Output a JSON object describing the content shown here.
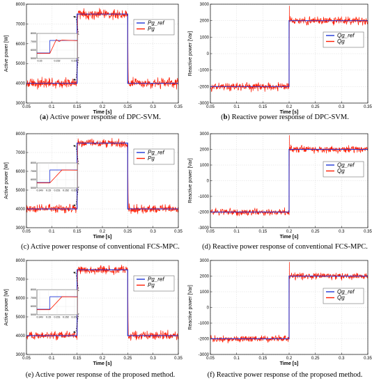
{
  "chart_data": [
    {
      "type": "line",
      "kind": "active",
      "label": "a",
      "caption_rest": " Active power response of DPC-SVM.",
      "xlabel": "Time [s]",
      "ylabel": "Active power [W]",
      "xlim": [
        0.05,
        0.35
      ],
      "ylim": [
        3000,
        8000
      ],
      "xticks": [
        "0.05",
        "0.1",
        "0.15",
        "0.2",
        "0.25",
        "0.3",
        "0.35"
      ],
      "yticks": [
        "3000",
        "4000",
        "5000",
        "6000",
        "7000",
        "8000"
      ],
      "series": [
        {
          "name": "Pg_ref",
          "color": "#1f35d6",
          "x": [
            0.05,
            0.15,
            0.15,
            0.25,
            0.25,
            0.35
          ],
          "values": [
            4000,
            4000,
            7500,
            7500,
            4000,
            4000
          ]
        },
        {
          "name": "Pg",
          "color": "#ff1a00",
          "x": [
            0.05,
            0.15,
            0.151,
            0.25,
            0.251,
            0.35
          ],
          "values": [
            4000,
            4000,
            7500,
            7500,
            4000,
            4000
          ],
          "noise": 130
        }
      ],
      "legend": {
        "position": "top-right"
      },
      "inset": {
        "xticks": [
          "0.15",
          "0.152",
          "0.154"
        ],
        "yticks": [
          "5000",
          "6000",
          "7000",
          "8000"
        ]
      }
    },
    {
      "type": "line",
      "kind": "reactive",
      "label": "b",
      "caption_rest": " Reactive power response of DPC-SVM.",
      "xlabel": "Time [s]",
      "ylabel": "Reactive power [Var]",
      "xlim": [
        0.05,
        0.35
      ],
      "ylim": [
        -3000,
        3000
      ],
      "xticks": [
        "0.05",
        "0.1",
        "0.15",
        "0.2",
        "0.25",
        "0.3",
        "0.35"
      ],
      "yticks": [
        "-3000",
        "-2000",
        "-1000",
        "0",
        "1000",
        "2000",
        "3000"
      ],
      "series": [
        {
          "name": "Qg_ref",
          "color": "#1f35d6",
          "x": [
            0.05,
            0.2,
            0.2,
            0.35
          ],
          "values": [
            -2000,
            -2000,
            2000,
            2000
          ]
        },
        {
          "name": "Qg",
          "color": "#ff1a00",
          "x": [
            0.05,
            0.2,
            0.2005,
            0.35
          ],
          "values": [
            -2000,
            -2000,
            2000,
            2000
          ],
          "noise": 120
        }
      ],
      "legend": {
        "position": "top-right"
      }
    },
    {
      "type": "line",
      "kind": "active",
      "label": "",
      "caption_rest": "(c) Active power response of conventional FCS-MPC.",
      "xlabel": "Time [s]",
      "ylabel": "Active power [W]",
      "xlim": [
        0.05,
        0.35
      ],
      "ylim": [
        3000,
        8000
      ],
      "xticks": [
        "0.05",
        "0.1",
        "0.15",
        "0.2",
        "0.25",
        "0.3",
        "0.35"
      ],
      "yticks": [
        "3000",
        "4000",
        "5000",
        "6000",
        "7000",
        "8000"
      ],
      "series": [
        {
          "name": "Pg_ref",
          "color": "#1f35d6",
          "x": [
            0.05,
            0.15,
            0.15,
            0.25,
            0.25,
            0.35
          ],
          "values": [
            4000,
            4000,
            7500,
            7500,
            4000,
            4000
          ]
        },
        {
          "name": "Pg",
          "color": "#ff1a00",
          "x": [
            0.05,
            0.15,
            0.151,
            0.25,
            0.251,
            0.35
          ],
          "values": [
            4000,
            4000,
            7500,
            7500,
            4000,
            4000
          ],
          "noise": 110
        }
      ],
      "legend": {
        "position": "top-right"
      },
      "inset": {
        "xticks": [
          "0.149",
          "0.15",
          "0.151",
          "0.152",
          "0.153"
        ],
        "yticks": [
          "5000",
          "6000",
          "7000",
          "8000"
        ]
      }
    },
    {
      "type": "line",
      "kind": "reactive",
      "label": "",
      "caption_rest": "(d) Reactive power response of conventional FCS-MPC.",
      "xlabel": "Time [s]",
      "ylabel": "Reactive power [Var]",
      "xlim": [
        0.05,
        0.35
      ],
      "ylim": [
        -3000,
        3000
      ],
      "xticks": [
        "0.05",
        "0.1",
        "0.15",
        "0.2",
        "0.25",
        "0.3",
        "0.35"
      ],
      "yticks": [
        "-3000",
        "-2000",
        "-1000",
        "0",
        "1000",
        "2000",
        "3000"
      ],
      "series": [
        {
          "name": "Qg_ref",
          "color": "#1f35d6",
          "x": [
            0.05,
            0.2,
            0.2,
            0.35
          ],
          "values": [
            -2000,
            -2000,
            2000,
            2000
          ]
        },
        {
          "name": "Qg",
          "color": "#ff1a00",
          "x": [
            0.05,
            0.2,
            0.2005,
            0.35
          ],
          "values": [
            -2000,
            -2000,
            2000,
            2000
          ],
          "noise": 110
        }
      ],
      "legend": {
        "position": "top-right"
      }
    },
    {
      "type": "line",
      "kind": "active",
      "label": "",
      "caption_rest": "(e) Active power response of the proposed method.",
      "xlabel": "Time [s]",
      "ylabel": "Active power [W]",
      "xlim": [
        0.05,
        0.35
      ],
      "ylim": [
        3000,
        8000
      ],
      "xticks": [
        "0.05",
        "0.1",
        "0.15",
        "0.2",
        "0.25",
        "0.3",
        "0.35"
      ],
      "yticks": [
        "3000",
        "4000",
        "5000",
        "6000",
        "7000",
        "8000"
      ],
      "series": [
        {
          "name": "Pg_ref",
          "color": "#1f35d6",
          "x": [
            0.05,
            0.15,
            0.15,
            0.25,
            0.25,
            0.35
          ],
          "values": [
            4000,
            4000,
            7500,
            7500,
            4000,
            4000
          ]
        },
        {
          "name": "Pg",
          "color": "#ff1a00",
          "x": [
            0.05,
            0.15,
            0.151,
            0.25,
            0.251,
            0.35
          ],
          "values": [
            4000,
            4000,
            7500,
            7500,
            4000,
            4000
          ],
          "noise": 110
        }
      ],
      "legend": {
        "position": "top-right"
      },
      "inset": {
        "xticks": [
          "0.149",
          "0.15",
          "0.151",
          "0.152",
          "0.153"
        ],
        "yticks": [
          "5000",
          "6000",
          "7000",
          "8000"
        ]
      }
    },
    {
      "type": "line",
      "kind": "reactive",
      "label": "",
      "caption_rest": "(f) Reactive power response of the proposed method.",
      "xlabel": "Time [s]",
      "ylabel": "Reactive power [Var]",
      "xlim": [
        0.05,
        0.35
      ],
      "ylim": [
        -3000,
        3000
      ],
      "xticks": [
        "0.05",
        "0.1",
        "0.15",
        "0.2",
        "0.25",
        "0.3",
        "0.35"
      ],
      "yticks": [
        "-3000",
        "-2000",
        "-1000",
        "0",
        "1000",
        "2000",
        "3000"
      ],
      "series": [
        {
          "name": "Qg_ref",
          "color": "#1f35d6",
          "x": [
            0.05,
            0.2,
            0.2,
            0.35
          ],
          "values": [
            -2000,
            -2000,
            2000,
            2000
          ]
        },
        {
          "name": "Qg",
          "color": "#ff1a00",
          "x": [
            0.05,
            0.2,
            0.2005,
            0.35
          ],
          "values": [
            -2000,
            -2000,
            2000,
            2000
          ],
          "noise": 110
        }
      ],
      "legend": {
        "position": "top-right"
      }
    }
  ]
}
